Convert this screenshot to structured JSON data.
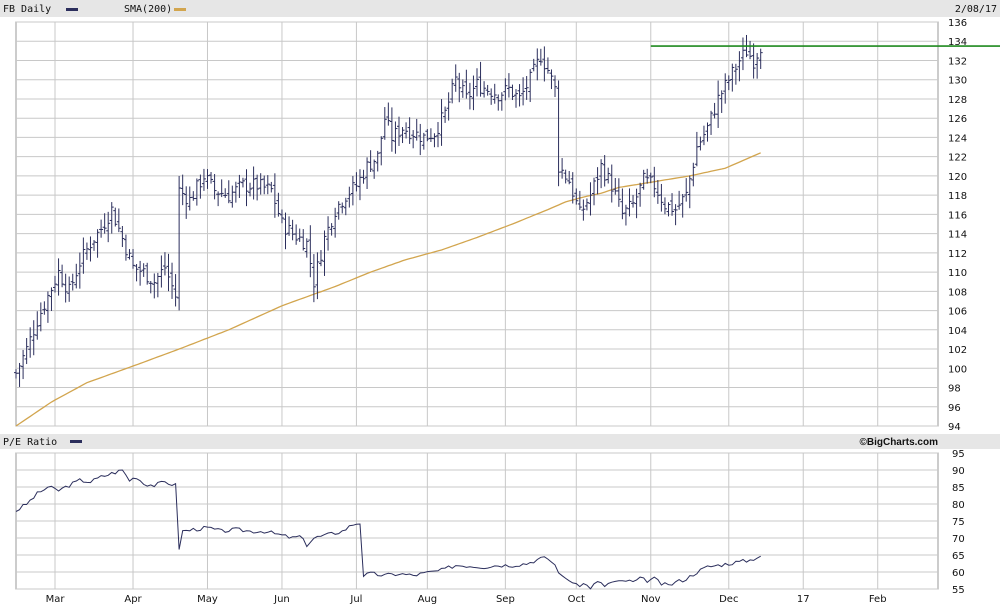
{
  "header": {
    "ticker_label": "FB Daily",
    "sma_label": "SMA(200)",
    "date": "2/08/17"
  },
  "lower_header": {
    "label": "P/E Ratio",
    "brand": "©BigCharts.com"
  },
  "colors": {
    "price": "#2b2e5c",
    "sma": "#d2a54e",
    "resistance": "#1f8a1f",
    "grid": "#c8c8c8",
    "panel_bg": "#ffffff",
    "strip_bg": "#e6e6e6"
  },
  "chart_data": [
    {
      "type": "ohlc-bar",
      "name": "price",
      "ylim": [
        94,
        136
      ],
      "yticks": [
        94,
        96,
        98,
        100,
        102,
        104,
        106,
        108,
        110,
        112,
        114,
        116,
        118,
        120,
        122,
        124,
        126,
        128,
        130,
        132,
        134,
        136
      ],
      "xlim": [
        0,
        260
      ],
      "month_ticks": [
        {
          "label": "Mar",
          "x": 11
        },
        {
          "label": "Apr",
          "x": 33
        },
        {
          "label": "May",
          "x": 54
        },
        {
          "label": "Jun",
          "x": 75
        },
        {
          "label": "Jul",
          "x": 96
        },
        {
          "label": "Aug",
          "x": 116
        },
        {
          "label": "Sep",
          "x": 138
        },
        {
          "label": "Oct",
          "x": 158
        },
        {
          "label": "Nov",
          "x": 179
        },
        {
          "label": "Dec",
          "x": 201
        },
        {
          "label": "17",
          "x": 222
        },
        {
          "label": "Feb",
          "x": 243
        }
      ],
      "close_anchors": [
        [
          0,
          99.5
        ],
        [
          3,
          102
        ],
        [
          6,
          105
        ],
        [
          9,
          107.5
        ],
        [
          12,
          110
        ],
        [
          15,
          108
        ],
        [
          18,
          111
        ],
        [
          21,
          113
        ],
        [
          24,
          114.5
        ],
        [
          27,
          116.5
        ],
        [
          30,
          113.5
        ],
        [
          33,
          110.5
        ],
        [
          36,
          110
        ],
        [
          39,
          109
        ],
        [
          42,
          110.5
        ],
        [
          45,
          107.5
        ],
        [
          46,
          118.5
        ],
        [
          49,
          117.5
        ],
        [
          53,
          120
        ],
        [
          56,
          118.5
        ],
        [
          60,
          118
        ],
        [
          64,
          119
        ],
        [
          68,
          119
        ],
        [
          72,
          118.5
        ],
        [
          75,
          115
        ],
        [
          78,
          114
        ],
        [
          82,
          113
        ],
        [
          84,
          109
        ],
        [
          87,
          113.5
        ],
        [
          90,
          116.5
        ],
        [
          93,
          118
        ],
        [
          96,
          119
        ],
        [
          99,
          121
        ],
        [
          102,
          122
        ],
        [
          104,
          126
        ],
        [
          106,
          124
        ],
        [
          109,
          125
        ],
        [
          112,
          124.5
        ],
        [
          115,
          124
        ],
        [
          118,
          124.5
        ],
        [
          121,
          126.5
        ],
        [
          124,
          130
        ],
        [
          127,
          128
        ],
        [
          130,
          129.5
        ],
        [
          133,
          129
        ],
        [
          136,
          128.5
        ],
        [
          139,
          129
        ],
        [
          142,
          128
        ],
        [
          145,
          130
        ],
        [
          148,
          132.5
        ],
        [
          150,
          131
        ],
        [
          152,
          129
        ],
        [
          153,
          121
        ],
        [
          156,
          119.5
        ],
        [
          159,
          116
        ],
        [
          162,
          118
        ],
        [
          165,
          121
        ],
        [
          168,
          119
        ],
        [
          171,
          116
        ],
        [
          174,
          117
        ],
        [
          177,
          119.5
        ],
        [
          180,
          119
        ],
        [
          183,
          117
        ],
        [
          186,
          116.5
        ],
        [
          189,
          118
        ],
        [
          192,
          123
        ],
        [
          195,
          125
        ],
        [
          198,
          128
        ],
        [
          201,
          130
        ],
        [
          204,
          132
        ],
        [
          206,
          133
        ],
        [
          208,
          132
        ],
        [
          210,
          133.5
        ]
      ],
      "resistance_level": 133.5,
      "resistance_start_x": 179
    },
    {
      "type": "line",
      "name": "sma",
      "anchors": [
        [
          0,
          94
        ],
        [
          10,
          96.5
        ],
        [
          20,
          98.5
        ],
        [
          35,
          100.5
        ],
        [
          46,
          102
        ],
        [
          60,
          104
        ],
        [
          75,
          106.5
        ],
        [
          90,
          108.5
        ],
        [
          100,
          110
        ],
        [
          110,
          111.3
        ],
        [
          120,
          112.3
        ],
        [
          130,
          113.6
        ],
        [
          140,
          115
        ],
        [
          150,
          116.5
        ],
        [
          155,
          117.3
        ],
        [
          160,
          117.8
        ],
        [
          165,
          118.2
        ],
        [
          170,
          118.8
        ],
        [
          180,
          119.4
        ],
        [
          190,
          120
        ],
        [
          200,
          120.8
        ],
        [
          210,
          122.4
        ]
      ]
    },
    {
      "type": "line",
      "name": "pe_ratio",
      "ylim": [
        55,
        95
      ],
      "yticks": [
        55,
        60,
        65,
        70,
        75,
        80,
        85,
        90,
        95
      ],
      "anchors": [
        [
          0,
          78
        ],
        [
          3,
          80
        ],
        [
          6,
          83
        ],
        [
          9,
          85
        ],
        [
          12,
          84
        ],
        [
          15,
          85.5
        ],
        [
          18,
          87
        ],
        [
          21,
          86.5
        ],
        [
          24,
          88
        ],
        [
          27,
          89
        ],
        [
          30,
          90
        ],
        [
          32,
          87
        ],
        [
          34,
          88
        ],
        [
          36,
          86
        ],
        [
          39,
          85.5
        ],
        [
          42,
          86.5
        ],
        [
          45,
          85.5
        ],
        [
          46,
          67
        ],
        [
          47,
          72
        ],
        [
          50,
          72.5
        ],
        [
          54,
          73
        ],
        [
          58,
          72
        ],
        [
          62,
          72.5
        ],
        [
          66,
          72
        ],
        [
          70,
          72
        ],
        [
          74,
          71
        ],
        [
          78,
          70
        ],
        [
          80,
          70.5
        ],
        [
          82,
          68
        ],
        [
          84,
          70
        ],
        [
          88,
          71
        ],
        [
          92,
          72
        ],
        [
          95,
          74
        ],
        [
          97,
          74.5
        ],
        [
          98,
          59
        ],
        [
          100,
          59.5
        ],
        [
          104,
          59
        ],
        [
          108,
          59.5
        ],
        [
          112,
          59
        ],
        [
          116,
          59.8
        ],
        [
          120,
          60.5
        ],
        [
          124,
          62
        ],
        [
          128,
          61.8
        ],
        [
          132,
          61.5
        ],
        [
          136,
          62
        ],
        [
          140,
          62
        ],
        [
          144,
          62.5
        ],
        [
          148,
          64
        ],
        [
          150,
          64
        ],
        [
          152,
          62
        ],
        [
          154,
          58.5
        ],
        [
          156,
          57.8
        ],
        [
          158,
          56
        ],
        [
          160,
          56.5
        ],
        [
          162,
          55.5
        ],
        [
          164,
          57
        ],
        [
          166,
          56
        ],
        [
          168,
          57
        ],
        [
          170,
          57
        ],
        [
          172,
          57.5
        ],
        [
          174,
          57
        ],
        [
          176,
          58
        ],
        [
          178,
          57.5
        ],
        [
          180,
          58
        ],
        [
          182,
          56.5
        ],
        [
          184,
          56
        ],
        [
          186,
          57
        ],
        [
          189,
          58
        ],
        [
          192,
          60
        ],
        [
          195,
          61.5
        ],
        [
          198,
          62
        ],
        [
          201,
          62.5
        ],
        [
          204,
          63
        ],
        [
          207,
          63.5
        ],
        [
          210,
          64.8
        ]
      ]
    }
  ]
}
